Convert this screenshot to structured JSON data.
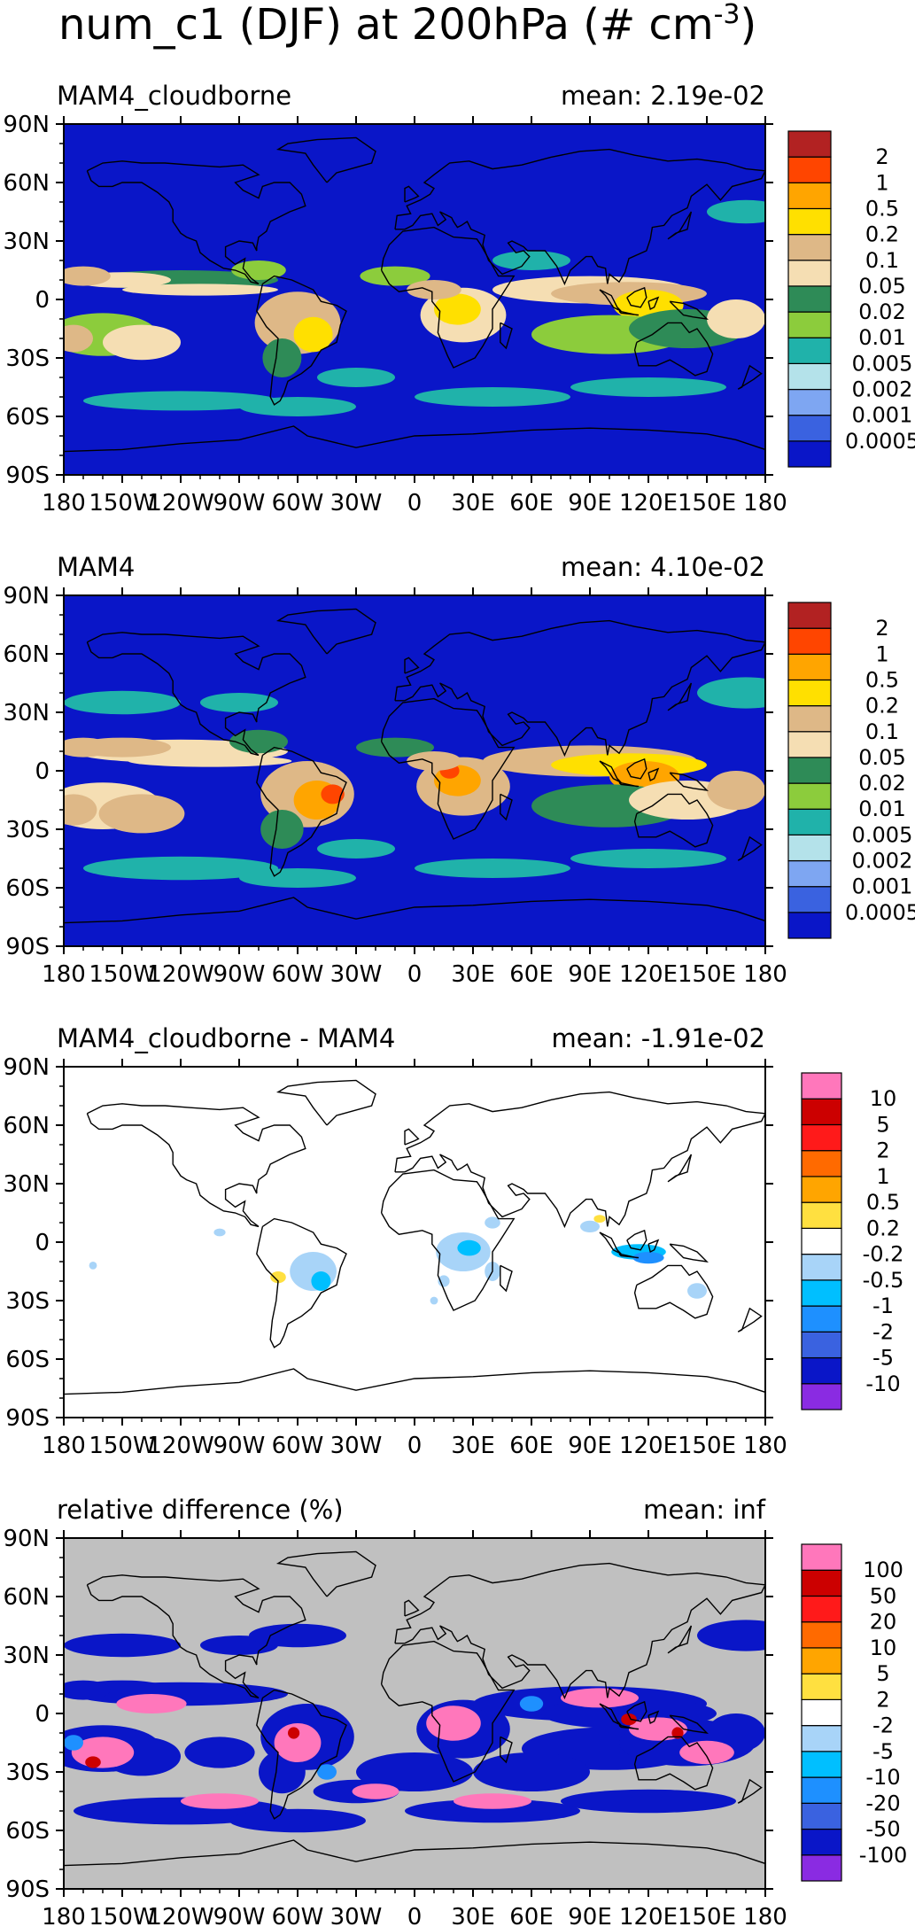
{
  "figure": {
    "title": "num_c1 (DJF) at 200hPa (# cm",
    "title_superscript": "-3",
    "title_close": ")"
  },
  "chart_data": [
    {
      "type": "heatmap",
      "title": "MAM4_cloudborne",
      "mean_label": "mean: 2.19e-02",
      "x_ticks": [
        "180",
        "150W",
        "120W",
        "90W",
        "60W",
        "30W",
        "0",
        "30E",
        "60E",
        "90E",
        "120E",
        "150E",
        "180"
      ],
      "y_ticks": [
        "90N",
        "60N",
        "30N",
        "0",
        "30S",
        "60S",
        "90S"
      ],
      "xlim": [
        -180,
        180
      ],
      "ylim": [
        -90,
        90
      ],
      "background_color": "#0a16c8",
      "colorbar": {
        "colors": [
          "#0a16c8",
          "#3a62e0",
          "#7ea6f2",
          "#b4e2ea",
          "#20b2aa",
          "#8ccc3c",
          "#2e8b57",
          "#f5deb3",
          "#deb887",
          "#ffe000",
          "#ffa500",
          "#ff4500",
          "#b22222"
        ],
        "labels": [
          "0.0005",
          "0.001",
          "0.002",
          "0.005",
          "0.01",
          "0.02",
          "0.05",
          "0.1",
          "0.2",
          "0.5",
          "1",
          "2"
        ]
      }
    },
    {
      "type": "heatmap",
      "title": "MAM4",
      "mean_label": "mean: 4.10e-02",
      "x_ticks": [
        "180",
        "150W",
        "120W",
        "90W",
        "60W",
        "30W",
        "0",
        "30E",
        "60E",
        "90E",
        "120E",
        "150E",
        "180"
      ],
      "y_ticks": [
        "90N",
        "60N",
        "30N",
        "0",
        "30S",
        "60S",
        "90S"
      ],
      "xlim": [
        -180,
        180
      ],
      "ylim": [
        -90,
        90
      ],
      "background_color": "#0a16c8",
      "colorbar": {
        "colors": [
          "#0a16c8",
          "#3a62e0",
          "#7ea6f2",
          "#b4e2ea",
          "#20b2aa",
          "#8ccc3c",
          "#2e8b57",
          "#f5deb3",
          "#deb887",
          "#ffe000",
          "#ffa500",
          "#ff4500",
          "#b22222"
        ],
        "labels": [
          "0.0005",
          "0.001",
          "0.002",
          "0.005",
          "0.01",
          "0.02",
          "0.05",
          "0.1",
          "0.2",
          "0.5",
          "1",
          "2"
        ]
      }
    },
    {
      "type": "heatmap",
      "title": "MAM4_cloudborne - MAM4",
      "mean_label": "mean: -1.91e-02",
      "x_ticks": [
        "180",
        "150W",
        "120W",
        "90W",
        "60W",
        "30W",
        "0",
        "30E",
        "60E",
        "90E",
        "120E",
        "150E",
        "180"
      ],
      "y_ticks": [
        "90N",
        "60N",
        "30N",
        "0",
        "30S",
        "60S",
        "90S"
      ],
      "xlim": [
        -180,
        180
      ],
      "ylim": [
        -90,
        90
      ],
      "background_color": "#ffffff",
      "colorbar": {
        "colors": [
          "#8a2be2",
          "#0a16c8",
          "#3a62e0",
          "#1e90ff",
          "#00bfff",
          "#a8d4f8",
          "#ffffff",
          "#ffe040",
          "#ffa500",
          "#ff6a00",
          "#ff1a1a",
          "#cc0000",
          "#ff77bb"
        ],
        "labels": [
          "-10",
          "-5",
          "-2",
          "-1",
          "-0.5",
          "-0.2",
          "0.2",
          "0.5",
          "1",
          "2",
          "5",
          "10"
        ]
      }
    },
    {
      "type": "heatmap",
      "title": "relative difference (%)",
      "mean_label": "mean:    inf",
      "x_ticks": [
        "180",
        "150W",
        "120W",
        "90W",
        "60W",
        "30W",
        "0",
        "30E",
        "60E",
        "90E",
        "120E",
        "150E",
        "180"
      ],
      "y_ticks": [
        "90N",
        "60N",
        "30N",
        "0",
        "30S",
        "60S",
        "90S"
      ],
      "xlim": [
        -180,
        180
      ],
      "ylim": [
        -90,
        90
      ],
      "background_color": "#c0c0c0",
      "colorbar": {
        "colors": [
          "#8a2be2",
          "#0a16c8",
          "#3a62e0",
          "#1e90ff",
          "#00bfff",
          "#a8d4f8",
          "#ffffff",
          "#ffe040",
          "#ffa500",
          "#ff6a00",
          "#ff1a1a",
          "#cc0000",
          "#ff77bb"
        ],
        "labels": [
          "-100",
          "-50",
          "-20",
          "-10",
          "-5",
          "-2",
          "2",
          "5",
          "10",
          "20",
          "50",
          "100"
        ]
      }
    }
  ]
}
